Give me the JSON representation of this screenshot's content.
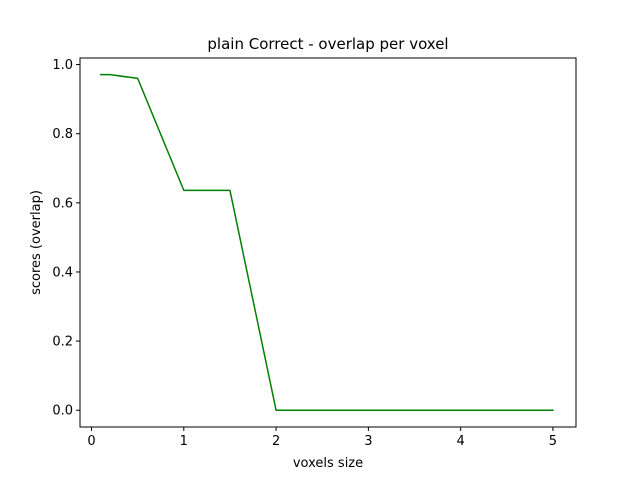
{
  "chart_data": {
    "type": "line",
    "title": "plain Correct - overlap per voxel",
    "xlabel": "voxels size",
    "ylabel": "scores (overlap)",
    "xlim": [
      -0.125,
      5.25
    ],
    "ylim": [
      -0.0485,
      1.019
    ],
    "xticks": [
      0,
      1,
      2,
      3,
      4,
      5
    ],
    "yticks": [
      0.0,
      0.2,
      0.4,
      0.6,
      0.8,
      1.0
    ],
    "xtick_labels": [
      "0",
      "1",
      "2",
      "3",
      "4",
      "5"
    ],
    "ytick_labels": [
      "0.0",
      "0.2",
      "0.4",
      "0.6",
      "0.8",
      "1.0"
    ],
    "grid": false,
    "series": [
      {
        "color": "#008000",
        "x": [
          0.1,
          0.2,
          0.5,
          1.0,
          1.5,
          2.0,
          2.5,
          3.0,
          3.5,
          4.0,
          4.5,
          5.0
        ],
        "y": [
          0.971,
          0.971,
          0.96,
          0.636,
          0.636,
          0.0,
          0.0,
          0.0,
          0.0,
          0.0,
          0.0,
          0.0
        ]
      }
    ]
  }
}
